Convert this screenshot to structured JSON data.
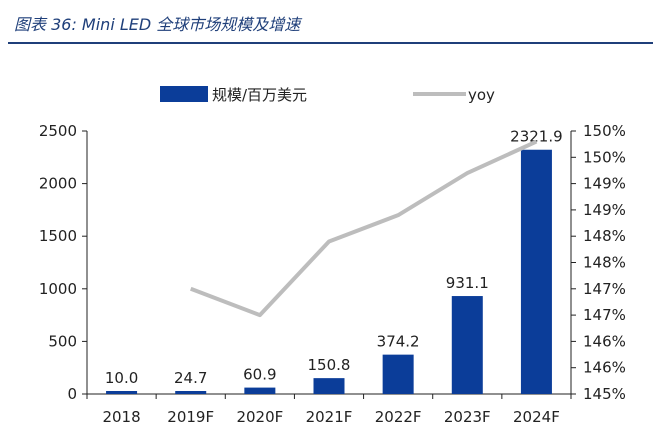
{
  "figure": {
    "title": "图表 36:  Mini LED 全球市场规模及增速"
  },
  "colors": {
    "bar": "#0b3d99",
    "line": "#bdbdbd",
    "axis": "#222222",
    "title": "#1f3f7a"
  },
  "chart_data": {
    "type": "bar",
    "title": "",
    "xlabel": "",
    "ylabel": "",
    "categories": [
      "2018",
      "2019F",
      "2020F",
      "2021F",
      "2022F",
      "2023F",
      "2024F"
    ],
    "series": [
      {
        "name": "规模/百万美元",
        "type": "bar",
        "axis": "left",
        "values": [
          10.0,
          24.7,
          60.9,
          150.8,
          374.2,
          931.1,
          2321.9
        ],
        "data_labels": [
          "10.0",
          "24.7",
          "60.9",
          "150.8",
          "374.2",
          "931.1",
          "2321.9"
        ]
      },
      {
        "name": "yoy",
        "type": "line",
        "axis": "right",
        "values": [
          null,
          147.0,
          146.5,
          147.9,
          148.4,
          149.2,
          149.8
        ]
      }
    ],
    "ylim": [
      0,
      2500
    ],
    "y_ticks": [
      "0",
      "500",
      "1000",
      "1500",
      "2000",
      "2500"
    ],
    "y2lim": [
      145,
      150
    ],
    "y2_ticks": [
      "145%",
      "146%",
      "146%",
      "147%",
      "147%",
      "148%",
      "148%",
      "149%",
      "149%",
      "150%",
      "150%"
    ],
    "legend": "top",
    "grid": false
  }
}
